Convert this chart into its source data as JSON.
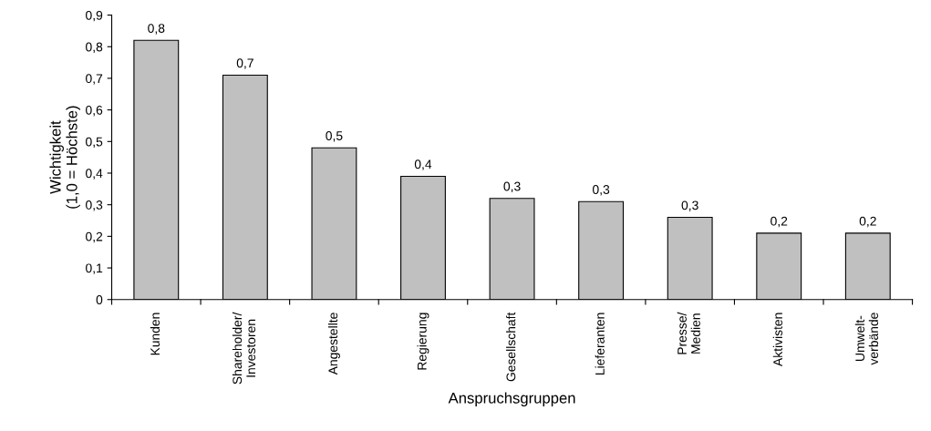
{
  "chart_data": {
    "type": "bar",
    "xlabel": "Anspruchsgruppen",
    "ylabel": "Wichtigkeit\n(1,0 = Höchste)",
    "categories": [
      "Kunden",
      "Shareholder/\nInvestoren",
      "Angestellte",
      "Regierung",
      "Gesellschaft",
      "Lieferanten",
      "Presse/\nMedien",
      "Aktivisten",
      "Umwelt-\nverbände"
    ],
    "values": [
      0.82,
      0.71,
      0.48,
      0.39,
      0.32,
      0.31,
      0.26,
      0.21,
      0.21
    ],
    "value_labels": [
      "0,8",
      "0,7",
      "0,5",
      "0,4",
      "0,3",
      "0,3",
      "0,3",
      "0,2",
      "0,2"
    ],
    "color": "#c0c0c0",
    "ylim": [
      0,
      0.9
    ],
    "yticks": [
      {
        "value": 0,
        "label": "0"
      },
      {
        "value": 0.1,
        "label": "0,1"
      },
      {
        "value": 0.2,
        "label": "0,2"
      },
      {
        "value": 0.3,
        "label": "0,3"
      },
      {
        "value": 0.4,
        "label": "0,4"
      },
      {
        "value": 0.5,
        "label": "0,5"
      },
      {
        "value": 0.6,
        "label": "0,6"
      },
      {
        "value": 0.7,
        "label": "0,7"
      },
      {
        "value": 0.8,
        "label": "0,8"
      },
      {
        "value": 0.9,
        "label": "0,9"
      }
    ],
    "grid": false,
    "legend": false
  }
}
